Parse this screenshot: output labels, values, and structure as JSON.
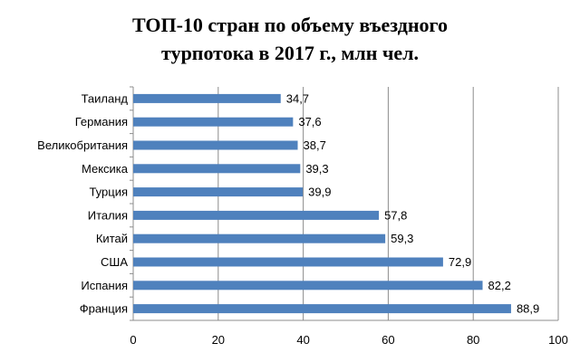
{
  "chart_data": {
    "type": "bar",
    "orientation": "horizontal",
    "title_lines": [
      "ТОП-10 стран по объему въездного",
      "турпотока в 2017 г., млн чел."
    ],
    "categories": [
      "Таиланд",
      "Германия",
      "Великобритания",
      "Мексика",
      "Турция",
      "Италия",
      "Китай",
      "США",
      "Испания",
      "Франция"
    ],
    "values": [
      34.7,
      37.6,
      38.7,
      39.3,
      39.9,
      57.8,
      59.3,
      72.9,
      82.2,
      88.9
    ],
    "value_labels": [
      "34,7",
      "37,6",
      "38,7",
      "39,3",
      "39,9",
      "57,8",
      "59,3",
      "72,9",
      "82,2",
      "88,9"
    ],
    "xlim": [
      0,
      100
    ],
    "x_ticks": [
      "0",
      "20",
      "40",
      "60",
      "80",
      "100"
    ],
    "x_tick_values": [
      0,
      20,
      40,
      60,
      80,
      100
    ],
    "grid": true,
    "legend": false,
    "bar_color": "#4f81bd",
    "grid_color": "#8c8c8c"
  }
}
